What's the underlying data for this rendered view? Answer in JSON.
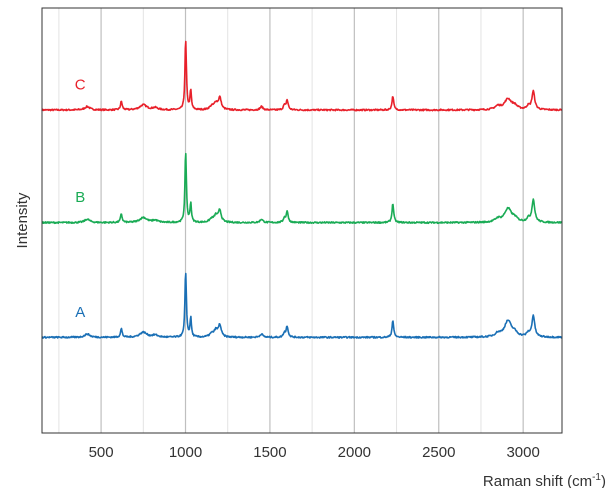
{
  "chart_data": {
    "type": "line",
    "title": "",
    "xlabel": "Raman shift (cm",
    "xlabel_superscript": "-1",
    "xlabel_suffix": ")",
    "ylabel": "Intensity",
    "xlim": [
      150,
      3230
    ],
    "ylim": [
      0,
      100
    ],
    "x_ticks": [
      500,
      1000,
      1500,
      2000,
      2500,
      3000
    ],
    "x_tick_labels": [
      "500",
      "1000",
      "1500",
      "2000",
      "2500",
      "3000"
    ],
    "minor_gridlines": [
      250,
      750,
      1250,
      1750,
      2250,
      2750
    ],
    "grid": true,
    "legend": "none",
    "series": [
      {
        "name": "C",
        "color": "#e8202a",
        "baseline": 76,
        "label_x": 400,
        "peaks": [
          [
            418,
            0.8,
            18
          ],
          [
            620,
            2.0,
            6
          ],
          [
            750,
            1.2,
            25
          ],
          [
            820,
            0.5,
            20
          ],
          [
            1001,
            16.5,
            5
          ],
          [
            1031,
            4.5,
            5
          ],
          [
            1155,
            0.8,
            15
          ],
          [
            1180,
            1.5,
            12
          ],
          [
            1203,
            2.8,
            10
          ],
          [
            1450,
            0.8,
            10
          ],
          [
            1602,
            2.3,
            7
          ],
          [
            1585,
            1.0,
            7
          ],
          [
            2228,
            3.3,
            6
          ],
          [
            2850,
            0.8,
            20
          ],
          [
            2910,
            2.5,
            25
          ],
          [
            2950,
            0.8,
            20
          ],
          [
            3030,
            0.8,
            12
          ],
          [
            3060,
            4.3,
            10
          ]
        ]
      },
      {
        "name": "B",
        "color": "#1aab55",
        "baseline": 49.5,
        "label_x": 400,
        "peaks": [
          [
            418,
            0.8,
            18
          ],
          [
            620,
            2.0,
            6
          ],
          [
            750,
            1.2,
            25
          ],
          [
            820,
            0.5,
            20
          ],
          [
            1001,
            16.5,
            5
          ],
          [
            1031,
            4.5,
            5
          ],
          [
            1155,
            0.8,
            15
          ],
          [
            1180,
            1.5,
            12
          ],
          [
            1203,
            2.8,
            10
          ],
          [
            1450,
            0.8,
            10
          ],
          [
            1602,
            2.6,
            7
          ],
          [
            1585,
            1.0,
            7
          ],
          [
            2228,
            4.5,
            6
          ],
          [
            2850,
            0.8,
            20
          ],
          [
            2910,
            3.2,
            25
          ],
          [
            2950,
            0.8,
            20
          ],
          [
            3030,
            0.8,
            12
          ],
          [
            3060,
            5.3,
            10
          ]
        ]
      },
      {
        "name": "A",
        "color": "#1a6fb5",
        "baseline": 22.5,
        "label_x": 400,
        "peaks": [
          [
            418,
            0.8,
            18
          ],
          [
            620,
            2.0,
            6
          ],
          [
            750,
            1.2,
            25
          ],
          [
            820,
            0.5,
            20
          ],
          [
            1001,
            15.5,
            5
          ],
          [
            1031,
            4.5,
            5
          ],
          [
            1155,
            0.8,
            15
          ],
          [
            1180,
            1.5,
            12
          ],
          [
            1203,
            2.8,
            10
          ],
          [
            1450,
            0.8,
            10
          ],
          [
            1602,
            2.6,
            7
          ],
          [
            1585,
            1.0,
            7
          ],
          [
            2228,
            4.0,
            6
          ],
          [
            2850,
            0.8,
            20
          ],
          [
            2910,
            3.8,
            25
          ],
          [
            2950,
            0.8,
            20
          ],
          [
            3030,
            0.8,
            12
          ],
          [
            3060,
            5.0,
            10
          ]
        ]
      }
    ]
  },
  "colors": {
    "axis": "#333333",
    "major_grid": "#bfbfbf",
    "minor_grid": "#e3e3e3"
  }
}
